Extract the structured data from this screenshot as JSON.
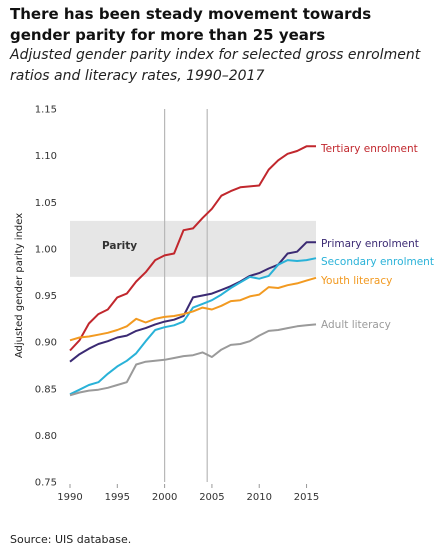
{
  "title": "There has been steady movement towards gender parity for more than 25 years",
  "subtitle": "Adjusted gender parity index for selected gross enrolment ratios and literacy rates, 1990–2017",
  "source": "Source: UIS database.",
  "chart_data": {
    "type": "line",
    "ylabel": "Adjusted gender parity index",
    "xlabel": "",
    "xlim": [
      1990,
      2016
    ],
    "ylim": [
      0.75,
      1.15
    ],
    "x_ticks": [
      1990,
      1995,
      2000,
      2005,
      2010,
      2015
    ],
    "y_ticks": [
      0.75,
      0.8,
      0.85,
      0.9,
      0.95,
      1.0,
      1.05,
      1.1,
      1.15
    ],
    "y_tick_labels": [
      "0.75",
      "0.80",
      "0.85",
      "0.90",
      "0.95",
      "1.00",
      "1.05",
      "1.10",
      "1.15"
    ],
    "vertical_markers": [
      2000,
      2004.5
    ],
    "parity_band": {
      "label": "Parity",
      "y_range": [
        0.97,
        1.03
      ]
    },
    "grid": false,
    "legend": "inline-right",
    "x": [
      1990,
      1991,
      1992,
      1993,
      1994,
      1995,
      1996,
      1997,
      1998,
      1999,
      2000,
      2001,
      2002,
      2003,
      2004,
      2005,
      2006,
      2007,
      2008,
      2009,
      2010,
      2011,
      2012,
      2013,
      2014,
      2015,
      2016
    ],
    "series": [
      {
        "name": "Tertiary enrolment",
        "color": "#c1272d",
        "values": [
          0.891,
          0.902,
          0.92,
          0.93,
          0.935,
          0.948,
          0.952,
          0.965,
          0.975,
          0.988,
          0.993,
          0.995,
          1.02,
          1.022,
          1.033,
          1.043,
          1.057,
          1.062,
          1.066,
          1.067,
          1.068,
          1.085,
          1.095,
          1.102,
          1.105,
          1.11,
          1.11
        ]
      },
      {
        "name": "Primary enrolment",
        "color": "#3b2a73",
        "values": [
          0.879,
          0.887,
          0.893,
          0.898,
          0.901,
          0.905,
          0.907,
          0.912,
          0.915,
          0.919,
          0.922,
          0.924,
          0.928,
          0.948,
          0.95,
          0.952,
          0.956,
          0.96,
          0.965,
          0.971,
          0.974,
          0.979,
          0.983,
          0.995,
          0.997,
          1.007,
          1.007
        ]
      },
      {
        "name": "Secondary enrolment",
        "color": "#29b2d8",
        "values": [
          0.844,
          0.849,
          0.854,
          0.857,
          0.866,
          0.874,
          0.88,
          0.888,
          0.901,
          0.913,
          0.916,
          0.918,
          0.922,
          0.937,
          0.941,
          0.945,
          0.951,
          0.958,
          0.964,
          0.97,
          0.968,
          0.971,
          0.983,
          0.988,
          0.987,
          0.988,
          0.99
        ]
      },
      {
        "name": "Youth literacy",
        "color": "#f29a21",
        "values": [
          0.902,
          0.905,
          0.906,
          0.908,
          0.91,
          0.913,
          0.917,
          0.925,
          0.921,
          0.925,
          0.927,
          0.928,
          0.93,
          0.933,
          0.937,
          0.935,
          0.939,
          0.944,
          0.945,
          0.949,
          0.951,
          0.959,
          0.958,
          0.961,
          0.963,
          0.966,
          0.969
        ]
      },
      {
        "name": "Adult literacy",
        "color": "#9a9a9a",
        "values": [
          0.843,
          0.846,
          0.848,
          0.849,
          0.851,
          0.854,
          0.857,
          0.876,
          0.879,
          0.88,
          0.881,
          0.883,
          0.885,
          0.886,
          0.889,
          0.884,
          0.892,
          0.897,
          0.898,
          0.901,
          0.907,
          0.912,
          0.913,
          0.915,
          0.917,
          0.918,
          0.919
        ]
      }
    ]
  }
}
